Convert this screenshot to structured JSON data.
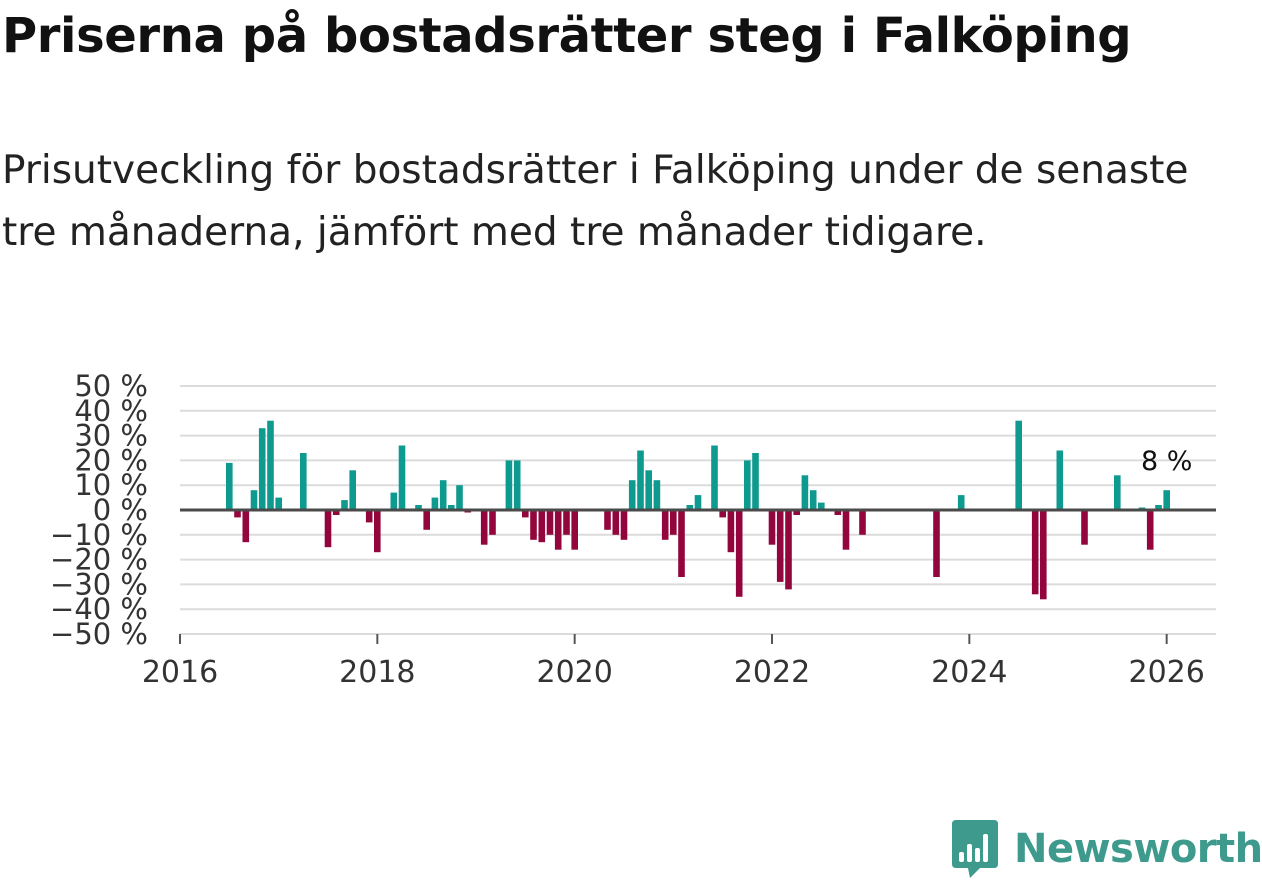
{
  "chart_data": {
    "type": "bar",
    "title": "Priserna på bostadsrätter steg i Falköping",
    "subtitle": "Prisutveckling för bostadsrätter i Falköping under de senaste tre månaderna, jämfört med tre månader tidigare.",
    "xlabel": "",
    "ylabel": "",
    "xlim": [
      2016.0,
      2026.5
    ],
    "ylim": [
      -50,
      50
    ],
    "yticks": [
      "50 %",
      "40 %",
      "30 %",
      "20 %",
      "10 %",
      "0 %",
      "−10 %",
      "−20 %",
      "−30 %",
      "−40 %",
      "−50 %"
    ],
    "xticks": [
      "2016",
      "2018",
      "2020",
      "2022",
      "2024",
      "2026"
    ],
    "positive_color": "#0e9a8f",
    "negative_color": "#93063d",
    "last_value_label": "8 %",
    "x": [
      2016.5,
      2016.583,
      2016.667,
      2016.75,
      2016.833,
      2016.917,
      2017.0,
      2017.25,
      2017.5,
      2017.583,
      2017.667,
      2017.75,
      2017.917,
      2018.0,
      2018.167,
      2018.25,
      2018.417,
      2018.5,
      2018.583,
      2018.667,
      2018.75,
      2018.833,
      2018.917,
      2019.083,
      2019.167,
      2019.333,
      2019.417,
      2019.5,
      2019.583,
      2019.667,
      2019.75,
      2019.833,
      2019.917,
      2020.0,
      2020.333,
      2020.417,
      2020.5,
      2020.583,
      2020.667,
      2020.75,
      2020.833,
      2020.917,
      2021.0,
      2021.083,
      2021.167,
      2021.25,
      2021.417,
      2021.5,
      2021.583,
      2021.667,
      2021.75,
      2021.833,
      2022.0,
      2022.083,
      2022.167,
      2022.25,
      2022.333,
      2022.417,
      2022.5,
      2022.667,
      2022.75,
      2022.917,
      2023.667,
      2023.917,
      2024.5,
      2024.667,
      2024.75,
      2024.917,
      2025.167,
      2025.5,
      2025.75,
      2025.833,
      2025.917,
      2026.0
    ],
    "values": [
      19,
      -3,
      -13,
      8,
      33,
      36,
      5,
      23,
      -15,
      -2,
      4,
      16,
      -5,
      -17,
      7,
      26,
      2,
      -8,
      5,
      12,
      2,
      10,
      -1,
      -14,
      -10,
      20,
      20,
      -3,
      -12,
      -13,
      -10,
      -16,
      -10,
      -16,
      -8,
      -10,
      -12,
      12,
      24,
      16,
      12,
      -12,
      -10,
      -27,
      2,
      6,
      26,
      -3,
      -17,
      -35,
      20,
      23,
      -14,
      -29,
      -32,
      -2,
      14,
      8,
      3,
      -2,
      -16,
      -10,
      -27,
      6,
      36,
      -34,
      -36,
      24,
      -14,
      14,
      1,
      -16,
      2,
      8
    ]
  },
  "brand": {
    "name": "Newsworthy",
    "color": "#3d9a8c"
  }
}
